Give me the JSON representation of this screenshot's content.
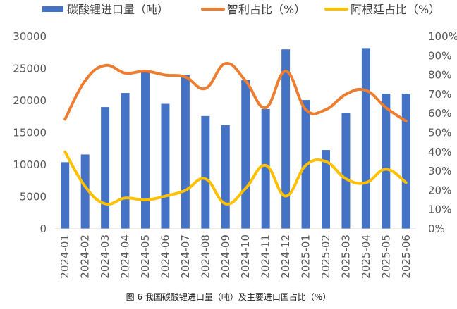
{
  "chart_data": {
    "type": "bar",
    "caption": "图 6   我国碳酸锂进口量（吨）及主要进口国占比（%）",
    "categories": [
      "2024-01",
      "2024-02",
      "2024-03",
      "2024-04",
      "2024-05",
      "2024-06",
      "2024-07",
      "2024-08",
      "2024-09",
      "2024-10",
      "2024-11",
      "2024-12",
      "2025-01",
      "2025-02",
      "2025-03",
      "2025-04",
      "2025-05",
      "2025-06"
    ],
    "y_left": {
      "min": 0,
      "max": 30000,
      "step": 5000,
      "ticks": [
        "0",
        "5000",
        "10000",
        "15000",
        "20000",
        "25000",
        "30000"
      ]
    },
    "y_right": {
      "min": 0,
      "max": 100,
      "step": 10,
      "ticks": [
        "0%",
        "10%",
        "20%",
        "30%",
        "40%",
        "50%",
        "60%",
        "70%",
        "80%",
        "90%",
        "100%"
      ]
    },
    "legend_position": "top",
    "grid": false,
    "series": [
      {
        "name": "碳酸锂进口量（吨）",
        "kind": "bar",
        "axis": "left",
        "color": "#4472C4",
        "values": [
          10400,
          11600,
          19000,
          21200,
          24700,
          19500,
          24000,
          17600,
          16200,
          23200,
          18700,
          28000,
          20100,
          12300,
          18100,
          28200,
          21100,
          21100
        ]
      },
      {
        "name": "智利占比（%）",
        "kind": "line",
        "axis": "right",
        "color": "#ED7D31",
        "values": [
          57,
          77,
          85,
          81,
          82,
          80,
          79,
          73,
          86,
          77,
          63,
          82,
          62,
          62,
          70,
          72,
          63,
          56
        ]
      },
      {
        "name": "阿根廷占比（%）",
        "kind": "line",
        "axis": "right",
        "color": "#FFC000",
        "values": [
          40,
          22,
          13,
          16,
          15,
          17,
          20,
          26,
          13,
          21,
          33,
          17,
          33,
          35,
          26,
          24,
          31,
          24
        ]
      }
    ]
  }
}
